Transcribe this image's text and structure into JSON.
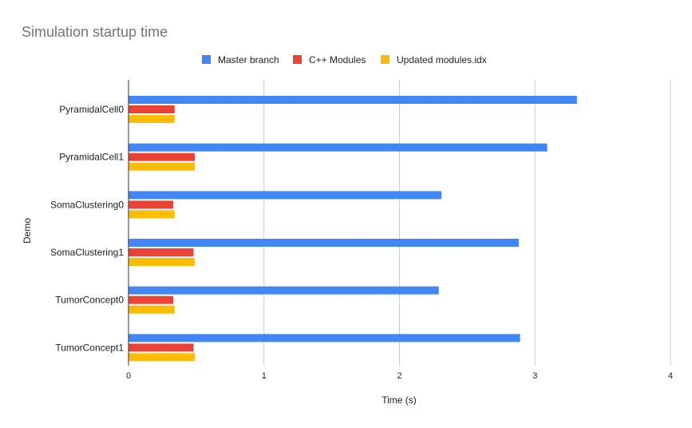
{
  "chart_data": {
    "type": "bar",
    "orientation": "horizontal",
    "title": "Simulation startup time",
    "xlabel": "Time (s)",
    "ylabel": "Demo",
    "xlim": [
      0,
      4
    ],
    "xticks": [
      "0",
      "1",
      "2",
      "3",
      "4"
    ],
    "grid": true,
    "legend_position": "top",
    "categories": [
      "PyramidalCell0",
      "PyramidalCell1",
      "SomaClustering0",
      "SomaClustering1",
      "TumorConcept0",
      "TumorConcept1"
    ],
    "series": [
      {
        "name": "Master branch",
        "color": "#4285f4",
        "values": [
          3.31,
          3.09,
          2.31,
          2.88,
          2.29,
          2.89
        ]
      },
      {
        "name": "C++ Modules",
        "color": "#ea4335",
        "values": [
          0.34,
          0.49,
          0.33,
          0.48,
          0.33,
          0.48
        ]
      },
      {
        "name": "Updated modules.idx",
        "color": "#fbbc04",
        "values": [
          0.34,
          0.49,
          0.34,
          0.49,
          0.34,
          0.49
        ]
      }
    ]
  }
}
